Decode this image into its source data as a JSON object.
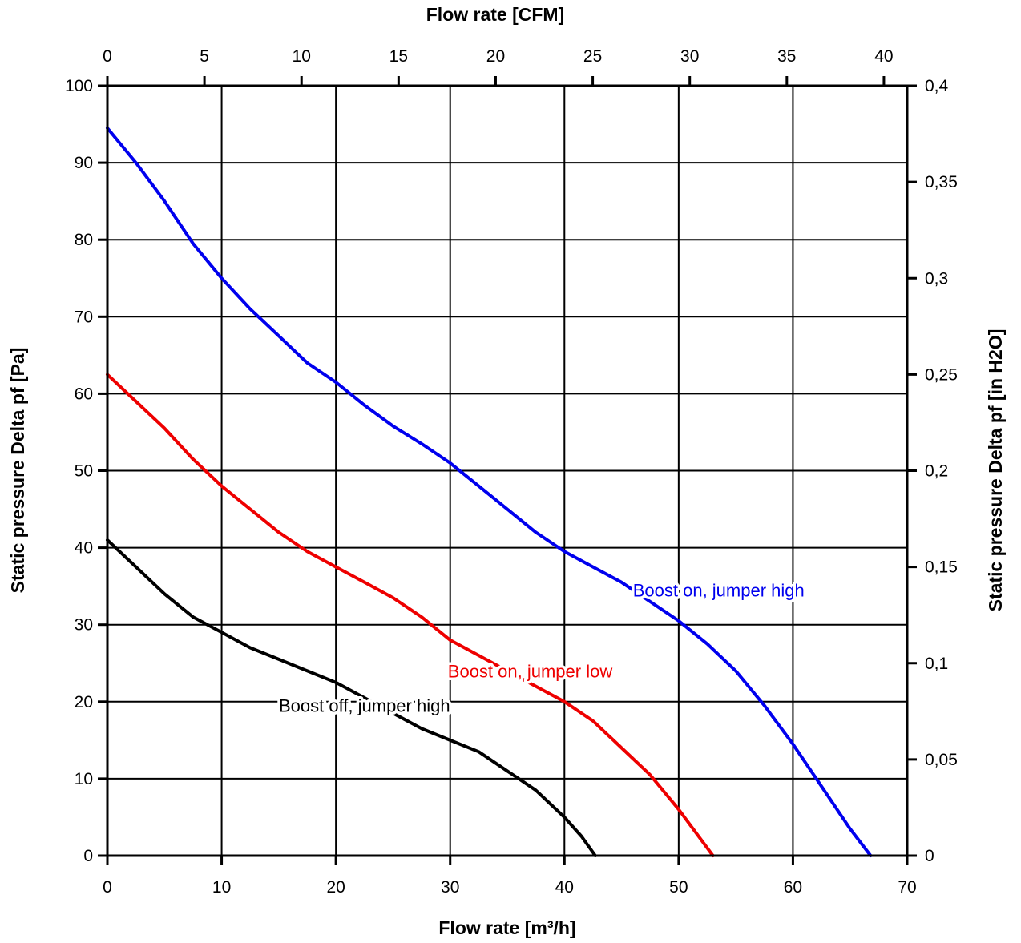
{
  "chart_data": {
    "type": "line",
    "title": "",
    "xlabel": "Flow rate [m³/h]",
    "ylabel": "Static pressure Delta pf [Pa]",
    "xlim": [
      0,
      70
    ],
    "ylim": [
      0,
      100
    ],
    "xticks": [
      "0",
      "10",
      "20",
      "30",
      "40",
      "50",
      "60",
      "70"
    ],
    "yticks": [
      "0",
      "10",
      "20",
      "30",
      "40",
      "50",
      "60",
      "70",
      "80",
      "90",
      "100"
    ],
    "grid": true,
    "secondary_x_axis": {
      "label": "Flow rate [CFM]",
      "position": "top",
      "lim": [
        0,
        41.2
      ],
      "ticks": [
        "0",
        "5",
        "10",
        "15",
        "20",
        "25",
        "30",
        "35",
        "40"
      ]
    },
    "secondary_y_axis": {
      "label": "Static pressure Delta pf [in H2O]",
      "position": "right",
      "lim": [
        0,
        0.4
      ],
      "ticks": [
        "0",
        "0,05",
        "0,1",
        "0,15",
        "0,2",
        "0,25",
        "0,3",
        "0,35",
        "0,4"
      ]
    },
    "series": [
      {
        "name": "Boost on, jumper high",
        "color": "#0000ee",
        "label_anchor": [
          53.5,
          34.5
        ],
        "x": [
          0,
          2.5,
          5,
          7.5,
          10,
          12.5,
          15,
          17.5,
          20,
          22.5,
          25,
          27.5,
          30,
          32.5,
          35,
          37.5,
          40,
          42.5,
          45,
          47.5,
          50,
          52.5,
          55,
          57.5,
          60,
          62.5,
          65,
          66.8
        ],
        "y": [
          94.5,
          90,
          85,
          79.5,
          75,
          71,
          67.5,
          64,
          61.5,
          58.5,
          55.8,
          53.5,
          51,
          48,
          45,
          42,
          39.5,
          37.5,
          35.5,
          33,
          30.5,
          27.5,
          24,
          19.5,
          14.5,
          9,
          3.5,
          0
        ]
      },
      {
        "name": "Boost on, jumper low",
        "color": "#ee0000",
        "label_anchor": [
          37,
          24
        ],
        "x": [
          0,
          2.5,
          5,
          7.5,
          10,
          12.5,
          15,
          17.5,
          20,
          22.5,
          25,
          27.5,
          30,
          32.5,
          35,
          37.5,
          40,
          42.5,
          45,
          47.5,
          50,
          52,
          53
        ],
        "y": [
          62.5,
          59,
          55.5,
          51.5,
          48,
          45,
          42,
          39.5,
          37.5,
          35.5,
          33.5,
          31,
          28,
          26,
          24,
          22,
          20,
          17.5,
          14,
          10.5,
          6,
          2,
          0
        ]
      },
      {
        "name": "Boost off, jumper high",
        "color": "#000000",
        "label_anchor": [
          22.5,
          19.5
        ],
        "x": [
          0,
          2.5,
          5,
          7.5,
          10,
          12.5,
          15,
          17.5,
          20,
          22.5,
          25,
          27.5,
          30,
          32.5,
          35,
          37.5,
          40,
          41.5,
          42.7
        ],
        "y": [
          41,
          37.5,
          34,
          31,
          29,
          27,
          25.5,
          24,
          22.5,
          20.5,
          18.5,
          16.5,
          15,
          13.5,
          11,
          8.5,
          5,
          2.5,
          0
        ]
      }
    ]
  }
}
